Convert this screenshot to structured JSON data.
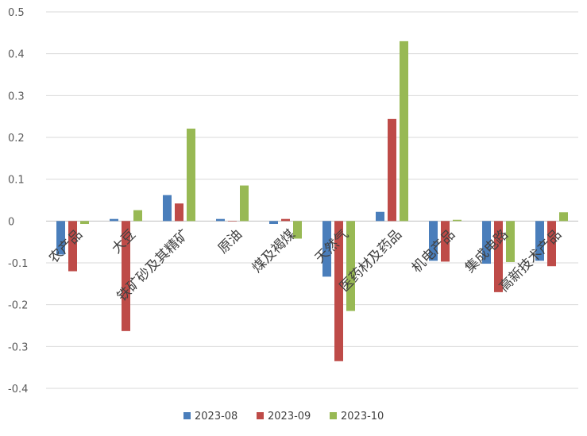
{
  "chart_data": {
    "type": "bar",
    "title": "",
    "xlabel": "",
    "ylabel": "",
    "ylim": [
      -0.4,
      0.5
    ],
    "yticks": [
      0.5,
      0.4,
      0.3,
      0.2,
      0.1,
      0,
      -0.1,
      -0.2,
      -0.3,
      -0.4
    ],
    "ytick_labels": [
      "0.5",
      "0.4",
      "0.3",
      "0.2",
      "0.1",
      "0",
      "-0.1",
      "-0.2",
      "-0.3",
      "-0.4"
    ],
    "grid": true,
    "legend_position": "bottom",
    "categories": [
      "农产品",
      "大豆",
      "铁矿砂及其精矿",
      "原油",
      "煤及褐煤",
      "天然气",
      "医药材及药品",
      "机电产品",
      "集成电路",
      "高新技术产品"
    ],
    "series": [
      {
        "name": "2023-08",
        "color": "#4a7ebb",
        "values": [
          -0.08,
          0.005,
          0.062,
          0.005,
          -0.007,
          -0.133,
          0.022,
          -0.095,
          -0.102,
          -0.095
        ]
      },
      {
        "name": "2023-09",
        "color": "#be4b48",
        "values": [
          -0.12,
          -0.263,
          0.042,
          0.0,
          0.005,
          -0.335,
          0.244,
          -0.097,
          -0.17,
          -0.108
        ]
      },
      {
        "name": "2023-10",
        "color": "#98b954",
        "values": [
          -0.007,
          0.026,
          0.221,
          0.085,
          -0.042,
          -0.215,
          0.43,
          0.003,
          -0.098,
          0.021
        ]
      }
    ]
  }
}
